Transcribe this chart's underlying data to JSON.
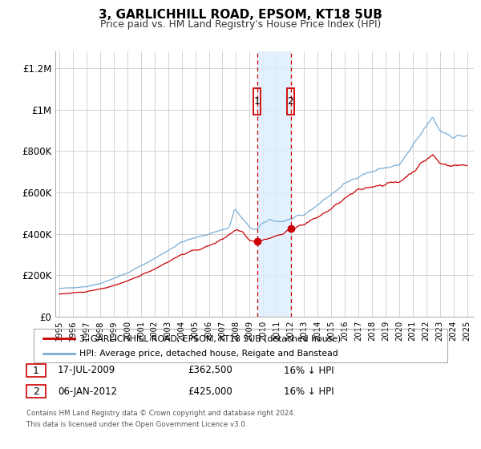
{
  "title": "3, GARLICHHILL ROAD, EPSOM, KT18 5UB",
  "subtitle": "Price paid vs. HM Land Registry's House Price Index (HPI)",
  "legend_line1": "3, GARLICHHILL ROAD, EPSOM, KT18 5UB (detached house)",
  "legend_line2": "HPI: Average price, detached house, Reigate and Banstead",
  "footnote1": "Contains HM Land Registry data © Crown copyright and database right 2024.",
  "footnote2": "This data is licensed under the Open Government Licence v3.0.",
  "sale1_date": "17-JUL-2009",
  "sale1_price": "£362,500",
  "sale1_hpi": "16% ↓ HPI",
  "sale2_date": "06-JAN-2012",
  "sale2_price": "£425,000",
  "sale2_hpi": "16% ↓ HPI",
  "sale1_x": 2009.54,
  "sale1_y": 362500,
  "sale2_x": 2012.02,
  "sale2_y": 425000,
  "vline1_x": 2009.54,
  "vline2_x": 2012.02,
  "shade_x1": 2009.54,
  "shade_x2": 2012.02,
  "red_line_color": "#cc0000",
  "blue_line_color": "#7aadd4",
  "shade_color": "#ddeeff",
  "vline_color": "#cc0000",
  "bg_color": "#ffffff",
  "grid_color": "#cccccc",
  "xlim_start": 1994.7,
  "xlim_end": 2025.5,
  "ylim_bottom": 0,
  "ylim_top": 1280000,
  "yticks": [
    0,
    200000,
    400000,
    600000,
    800000,
    1000000,
    1200000
  ],
  "ytick_labels": [
    "£0",
    "£200K",
    "£400K",
    "£600K",
    "£800K",
    "£1M",
    "£1.2M"
  ],
  "xtick_years": [
    1995,
    1996,
    1997,
    1998,
    1999,
    2000,
    2001,
    2002,
    2003,
    2004,
    2005,
    2006,
    2007,
    2008,
    2009,
    2010,
    2011,
    2012,
    2013,
    2014,
    2015,
    2016,
    2017,
    2018,
    2019,
    2020,
    2021,
    2022,
    2023,
    2024,
    2025
  ]
}
